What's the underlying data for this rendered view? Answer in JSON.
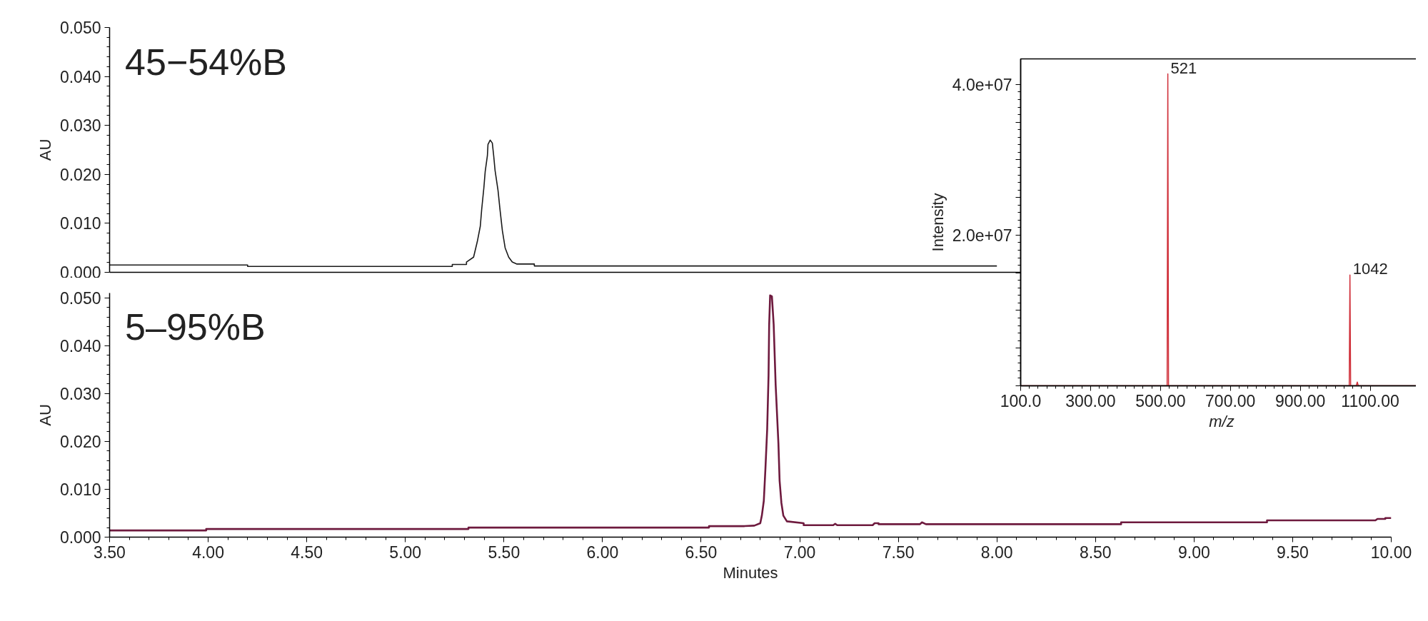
{
  "chart_data": [
    {
      "type": "line",
      "ylabel": "AU",
      "annotations": [
        "45−54%B"
      ],
      "xlim": [
        3.5,
        10.0
      ],
      "ylim": [
        0.0,
        0.05
      ],
      "tick_labels": "y",
      "yticks": [
        {
          "value": 0.0,
          "label": "0.000"
        },
        {
          "value": 0.01,
          "label": "0.010"
        },
        {
          "value": 0.02,
          "label": "0.020"
        },
        {
          "value": 0.03,
          "label": "0.030"
        },
        {
          "value": 0.04,
          "label": "0.040"
        },
        {
          "value": 0.05,
          "label": "0.050"
        }
      ],
      "series": [
        {
          "color": "#1a1a1a",
          "x": [
            3.5,
            4.2,
            4.2,
            5.238,
            5.238,
            5.31,
            5.31,
            5.346,
            5.365,
            5.38,
            5.387,
            5.398,
            5.405,
            5.416,
            5.419,
            5.43,
            5.441,
            5.448,
            5.455,
            5.47,
            5.48,
            5.492,
            5.506,
            5.524,
            5.542,
            5.564,
            5.654,
            5.654,
            8.0
          ],
          "values": [
            0.0015,
            0.0015,
            0.0012,
            0.0012,
            0.0016,
            0.0016,
            0.0021,
            0.0031,
            0.0063,
            0.0094,
            0.0128,
            0.0172,
            0.0206,
            0.0238,
            0.0261,
            0.027,
            0.0264,
            0.0238,
            0.0208,
            0.0167,
            0.0128,
            0.0085,
            0.005,
            0.0031,
            0.0021,
            0.0017,
            0.0017,
            0.0013,
            0.0013
          ]
        }
      ]
    },
    {
      "type": "line",
      "xlabel": "Minutes",
      "ylabel": "AU",
      "annotations": [
        "5–95%B"
      ],
      "xlim": [
        3.5,
        10.0
      ],
      "ylim": [
        0.0,
        0.051
      ],
      "xticks": [
        {
          "value": 3.5,
          "label": "3.50"
        },
        {
          "value": 4.0,
          "label": "4.00"
        },
        {
          "value": 4.5,
          "label": "4.50"
        },
        {
          "value": 5.0,
          "label": "5.00"
        },
        {
          "value": 5.5,
          "label": "5.50"
        },
        {
          "value": 6.0,
          "label": "6.00"
        },
        {
          "value": 6.5,
          "label": "6.50"
        },
        {
          "value": 7.0,
          "label": "7.00"
        },
        {
          "value": 7.5,
          "label": "7.50"
        },
        {
          "value": 8.0,
          "label": "8.00"
        },
        {
          "value": 8.5,
          "label": "8.50"
        },
        {
          "value": 9.0,
          "label": "9.00"
        },
        {
          "value": 9.5,
          "label": "9.50"
        },
        {
          "value": 10.0,
          "label": "10.00"
        }
      ],
      "yticks": [
        {
          "value": 0.0,
          "label": "0.000"
        },
        {
          "value": 0.01,
          "label": "0.010"
        },
        {
          "value": 0.02,
          "label": "0.020"
        },
        {
          "value": 0.03,
          "label": "0.030"
        },
        {
          "value": 0.04,
          "label": "0.040"
        },
        {
          "value": 0.05,
          "label": "0.050"
        }
      ],
      "series": [
        {
          "color": "#6e1a3e",
          "x": [
            3.5,
            3.99,
            3.99,
            5.32,
            5.32,
            6.54,
            6.54,
            6.72,
            6.77,
            6.8,
            6.808,
            6.818,
            6.826,
            6.835,
            6.842,
            6.845,
            6.85,
            6.859,
            6.868,
            6.878,
            6.892,
            6.898,
            6.907,
            6.917,
            6.935,
            7.02,
            7.02,
            7.17,
            7.18,
            7.19,
            7.37,
            7.38,
            7.4,
            7.4,
            7.61,
            7.62,
            7.64,
            8.63,
            8.63,
            9.37,
            9.37,
            9.92,
            9.93,
            9.97,
            9.97,
            10.0
          ],
          "values": [
            0.0014,
            0.0014,
            0.0017,
            0.0017,
            0.002,
            0.002,
            0.0023,
            0.0023,
            0.0024,
            0.0029,
            0.0045,
            0.0076,
            0.0142,
            0.0225,
            0.0338,
            0.0442,
            0.0505,
            0.0503,
            0.0444,
            0.0318,
            0.0196,
            0.0118,
            0.0072,
            0.0045,
            0.0033,
            0.0029,
            0.0025,
            0.0025,
            0.0028,
            0.0025,
            0.0025,
            0.0029,
            0.0029,
            0.0027,
            0.0027,
            0.0031,
            0.0027,
            0.0027,
            0.0031,
            0.0031,
            0.0035,
            0.0035,
            0.0038,
            0.0038,
            0.004,
            0.004
          ]
        }
      ]
    },
    {
      "type": "line",
      "xlabel": "m/z",
      "ylabel": "Intensity",
      "xlim": [
        100,
        1250
      ],
      "ylim": [
        0,
        43400000
      ],
      "annotations": [
        {
          "text": "521",
          "x": 521,
          "y": 41400000
        },
        {
          "text": "1042",
          "x": 1042,
          "y": 14700000
        }
      ],
      "xticks": [
        {
          "value": 100,
          "label": "100.0"
        },
        {
          "value": 300,
          "label": "300.00"
        },
        {
          "value": 500,
          "label": "500.00"
        },
        {
          "value": 700,
          "label": "700.00"
        },
        {
          "value": 900,
          "label": "900.00"
        },
        {
          "value": 1100,
          "label": "1100.00"
        }
      ],
      "yticks": [
        {
          "value": 0,
          "label": null
        },
        {
          "value": 5000000,
          "label": null
        },
        {
          "value": 10000000,
          "label": null
        },
        {
          "value": 15000000,
          "label": null
        },
        {
          "value": 20000000,
          "label": "2.0e+07"
        },
        {
          "value": 25000000,
          "label": null
        },
        {
          "value": 30000000,
          "label": null
        },
        {
          "value": 35000000,
          "label": null
        },
        {
          "value": 40000000,
          "label": "4.0e+07"
        }
      ],
      "series": [
        {
          "color": "#d0303a",
          "x": [
            100,
            515,
            519,
            521,
            523,
            527,
            1036,
            1040,
            1042,
            1044,
            1048,
            1060,
            1063,
            1066,
            1250
          ],
          "values": [
            0,
            0,
            0,
            41400000,
            0,
            0,
            0,
            0,
            14700000,
            0,
            0,
            0,
            500000,
            0,
            0
          ]
        }
      ]
    }
  ]
}
